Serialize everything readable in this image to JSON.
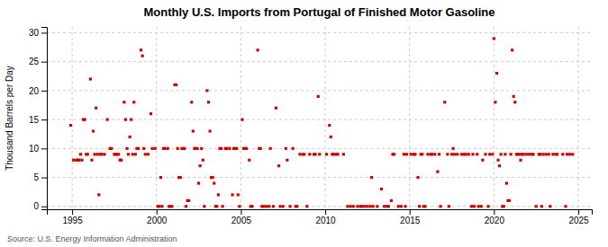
{
  "chart_data": {
    "type": "scatter",
    "title": "Monthly U.S. Imports from Portugal of Finished Motor Gasoline",
    "ylabel": "Thousand Barrels per Day",
    "source": "Source: U.S. Energy Information Administration",
    "color": "#cc0000",
    "marker": "square",
    "grid": true,
    "xlim": [
      1993.5,
      2025.8
    ],
    "ylim": [
      -0.5,
      31
    ],
    "xticks": [
      1995,
      2000,
      2005,
      2010,
      2015,
      2020,
      2025
    ],
    "yticks": [
      0,
      5,
      10,
      15,
      20,
      25,
      30
    ],
    "x": [
      1994.917,
      1995.083,
      1995.25,
      1995.333,
      1995.417,
      1995.5,
      1995.583,
      1995.667,
      1995.75,
      1995.833,
      1995.917,
      1996.083,
      1996.167,
      1996.25,
      1996.333,
      1996.417,
      1996.5,
      1996.583,
      1996.667,
      1996.75,
      1996.917,
      1997.083,
      1997.25,
      1997.333,
      1997.5,
      1997.583,
      1997.667,
      1997.75,
      1997.833,
      1997.917,
      1998.083,
      1998.167,
      1998.25,
      1998.333,
      1998.417,
      1998.5,
      1998.583,
      1998.667,
      1998.75,
      1998.833,
      1998.917,
      1999.083,
      1999.167,
      1999.25,
      1999.333,
      1999.5,
      1999.667,
      1999.75,
      1999.917,
      2000.083,
      2000.167,
      2000.25,
      2000.333,
      2000.417,
      2000.5,
      2000.667,
      2000.75,
      2000.833,
      2000.917,
      2001.083,
      2001.167,
      2001.25,
      2001.333,
      2001.417,
      2001.5,
      2001.583,
      2001.667,
      2001.75,
      2001.833,
      2001.917,
      2002.083,
      2002.167,
      2002.25,
      2002.333,
      2002.417,
      2002.5,
      2002.583,
      2002.667,
      2002.75,
      2002.833,
      2003.0,
      2003.083,
      2003.167,
      2003.25,
      2003.333,
      2003.417,
      2003.5,
      2003.583,
      2003.667,
      2003.75,
      2003.833,
      2003.917,
      2004.083,
      2004.167,
      2004.333,
      2004.5,
      2004.583,
      2004.667,
      2004.75,
      2004.833,
      2004.917,
      2005.083,
      2005.167,
      2005.25,
      2005.333,
      2005.5,
      2005.583,
      2005.667,
      2006.0,
      2006.083,
      2006.167,
      2006.25,
      2006.333,
      2006.5,
      2006.667,
      2006.75,
      2006.917,
      2007.083,
      2007.25,
      2007.333,
      2007.5,
      2007.667,
      2007.75,
      2007.917,
      2008.083,
      2008.25,
      2008.333,
      2008.5,
      2008.667,
      2008.75,
      2008.917,
      2009.083,
      2009.333,
      2009.417,
      2009.583,
      2009.667,
      2010.083,
      2010.25,
      2010.333,
      2010.417,
      2010.5,
      2010.667,
      2010.75,
      2011.083,
      2011.333,
      2011.5,
      2011.667,
      2011.917,
      2012.083,
      2012.167,
      2012.333,
      2012.5,
      2012.667,
      2012.75,
      2012.833,
      2013.083,
      2013.333,
      2013.5,
      2013.667,
      2013.75,
      2013.917,
      2014.0,
      2014.083,
      2014.333,
      2014.5,
      2014.667,
      2014.75,
      2014.833,
      2015.083,
      2015.25,
      2015.333,
      2015.5,
      2015.583,
      2015.667,
      2015.75,
      2015.833,
      2015.917,
      2016.083,
      2016.25,
      2016.333,
      2016.5,
      2016.667,
      2016.75,
      2016.833,
      2017.083,
      2017.25,
      2017.333,
      2017.5,
      2017.583,
      2017.667,
      2017.833,
      2018.083,
      2018.25,
      2018.333,
      2018.5,
      2018.667,
      2018.75,
      2018.833,
      2019.0,
      2019.083,
      2019.25,
      2019.333,
      2019.5,
      2019.667,
      2019.75,
      2019.917,
      2020.0,
      2020.083,
      2020.167,
      2020.25,
      2020.333,
      2020.417,
      2020.5,
      2020.583,
      2020.667,
      2020.75,
      2020.833,
      2020.917,
      2021.0,
      2021.083,
      2021.167,
      2021.25,
      2021.333,
      2021.417,
      2021.5,
      2021.583,
      2021.667,
      2021.75,
      2021.917,
      2022.083,
      2022.25,
      2022.333,
      2022.5,
      2022.667,
      2022.75,
      2022.833,
      2022.917,
      2023.083,
      2023.25,
      2023.333,
      2023.5,
      2023.667,
      2023.75,
      2024.083,
      2024.25,
      2024.333,
      2024.5,
      2024.667
    ],
    "values": [
      14,
      8,
      8,
      8,
      8,
      9,
      8,
      15,
      15,
      9,
      9,
      22,
      8,
      13,
      9,
      17,
      9,
      2,
      9,
      9,
      9,
      15,
      10,
      10,
      9,
      9,
      9,
      9,
      8,
      8,
      18,
      15,
      10,
      9,
      12,
      15,
      9,
      18,
      9,
      10,
      10,
      27,
      26,
      10,
      9,
      9,
      16,
      10,
      10,
      0,
      0,
      5,
      0,
      10,
      10,
      10,
      0,
      0,
      0,
      21,
      21,
      10,
      5,
      5,
      10,
      10,
      10,
      0,
      1,
      1,
      18,
      13,
      10,
      10,
      10,
      4,
      7,
      10,
      8,
      0,
      20,
      18,
      13,
      5,
      5,
      4,
      0,
      0,
      2,
      10,
      10,
      0,
      10,
      10,
      10,
      2,
      10,
      10,
      10,
      2,
      0,
      15,
      10,
      10,
      10,
      8,
      0,
      0,
      27,
      10,
      10,
      0,
      0,
      0,
      0,
      10,
      0,
      17,
      7,
      0,
      0,
      10,
      8,
      0,
      10,
      0,
      0,
      9,
      9,
      9,
      0,
      9,
      9,
      9,
      19,
      9,
      9,
      14,
      12,
      9,
      9,
      9,
      9,
      9,
      0,
      0,
      0,
      0,
      0,
      0,
      0,
      0,
      0,
      5,
      0,
      0,
      3,
      0,
      0,
      0,
      1,
      9,
      9,
      0,
      0,
      9,
      0,
      9,
      9,
      9,
      9,
      5,
      0,
      9,
      9,
      0,
      0,
      9,
      9,
      9,
      9,
      6,
      9,
      0,
      18,
      9,
      0,
      9,
      10,
      9,
      9,
      9,
      9,
      9,
      9,
      0,
      9,
      0,
      9,
      0,
      0,
      8,
      9,
      0,
      9,
      9,
      29,
      18,
      23,
      8,
      7,
      9,
      0,
      0,
      9,
      4,
      1,
      1,
      9,
      27,
      19,
      18,
      9,
      9,
      9,
      8,
      9,
      9,
      9,
      9,
      9,
      9,
      0,
      9,
      9,
      0,
      9,
      9,
      9,
      0,
      9,
      9,
      9,
      9,
      0,
      9,
      9,
      9
    ]
  }
}
